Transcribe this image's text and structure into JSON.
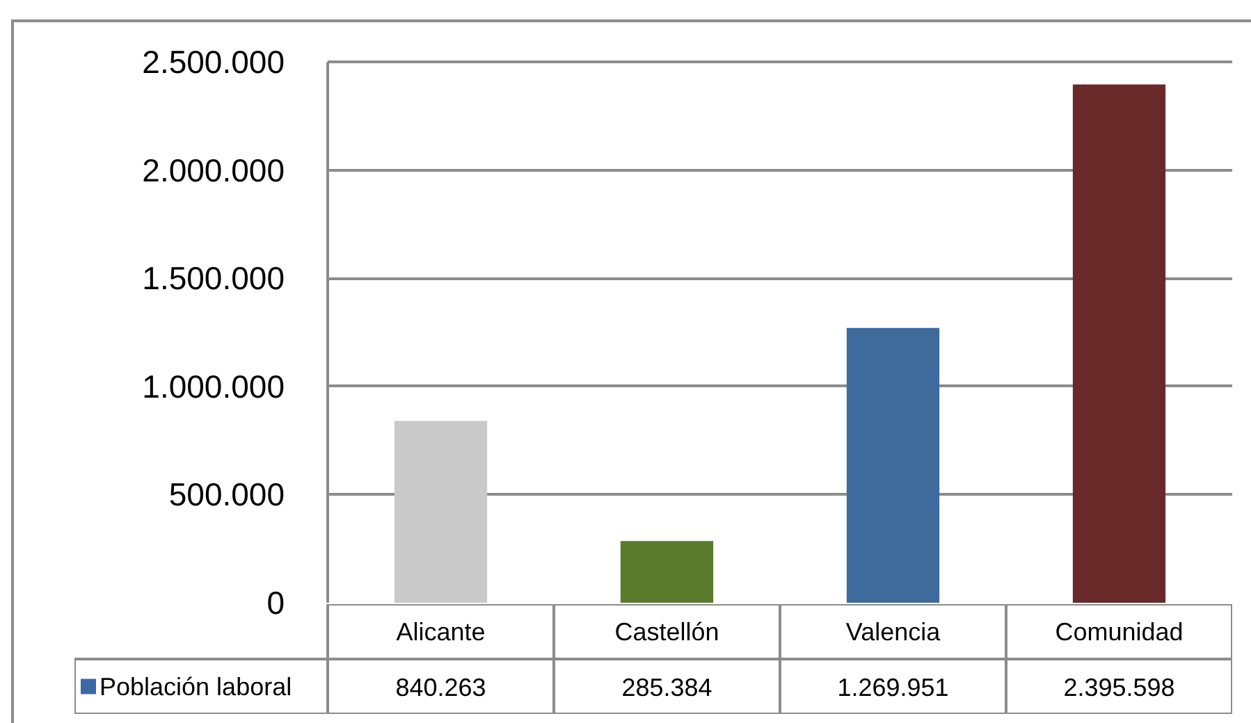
{
  "chart_data": {
    "type": "bar",
    "categories": [
      "Alicante",
      "Castellón",
      "Valencia",
      "Comunidad"
    ],
    "series": [
      {
        "name": "Población laboral",
        "color": "#3c68a8",
        "colors": [
          "#c9c9c9",
          "#5a7a2c",
          "#3e6a9c",
          "#6a2929"
        ],
        "values": [
          840263,
          285384,
          1269951,
          2395598
        ],
        "value_labels": [
          "840.263",
          "285.384",
          "1.269.951",
          "2.395.598"
        ]
      }
    ],
    "ylim": [
      0,
      2500000
    ],
    "yticks": [
      0,
      {
        "value": 500000,
        "label": "500.000"
      },
      {
        "value": 1000000,
        "label": "1.000.000"
      },
      {
        "value": 1500000,
        "label": "1.500.000"
      },
      {
        "value": 2000000,
        "label": "2.000.000"
      },
      {
        "value": 2500000,
        "label": "2.500.000"
      }
    ],
    "grid": "y",
    "legend": "bottom left"
  }
}
